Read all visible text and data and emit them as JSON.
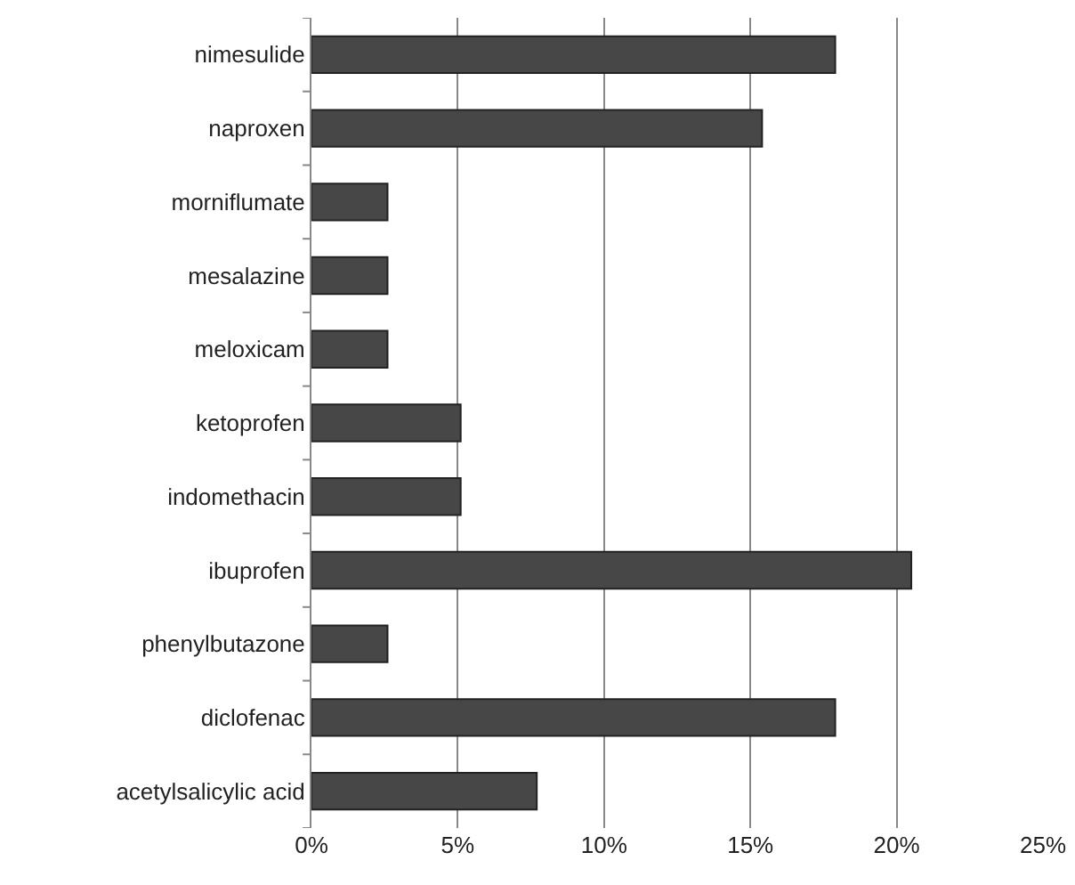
{
  "chart_data": {
    "type": "bar",
    "orientation": "horizontal",
    "categories": [
      "nimesulide",
      "naproxen",
      "morniflumate",
      "mesalazine",
      "meloxicam",
      "ketoprofen",
      "indomethacin",
      "ibuprofen",
      "phenylbutazone",
      "diclofenac",
      "acetylsalicylic acid"
    ],
    "values": [
      17.9,
      15.4,
      2.6,
      2.6,
      2.6,
      5.1,
      5.1,
      20.5,
      2.6,
      17.9,
      7.7
    ],
    "color": "#474747",
    "xlim": [
      0,
      25
    ],
    "xticks": [
      {
        "value": 0,
        "label": "0%"
      },
      {
        "value": 5,
        "label": "5%"
      },
      {
        "value": 10,
        "label": "10%"
      },
      {
        "value": 15,
        "label": "15%"
      },
      {
        "value": 20,
        "label": "20%"
      },
      {
        "value": 25,
        "label": "25%"
      }
    ],
    "grid": "x"
  }
}
